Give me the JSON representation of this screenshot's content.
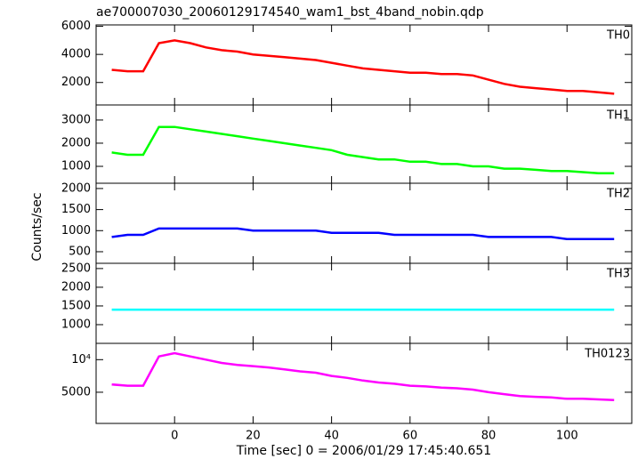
{
  "chart_data": {
    "type": "line",
    "title": "ae700007030_20060129174540_wam1_bst_4band_nobin.qdp",
    "ylabel": "Counts/sec",
    "xlabel": "Time [sec] 0 = 2006/01/29 17:45:40.651",
    "xlim": [
      -20,
      116.5
    ],
    "xticks": [
      0,
      20,
      40,
      60,
      80,
      100
    ],
    "x": [
      -16,
      -12,
      -8,
      -4,
      0,
      4,
      8,
      12,
      16,
      20,
      24,
      28,
      32,
      36,
      40,
      44,
      48,
      52,
      56,
      60,
      64,
      68,
      72,
      76,
      80,
      84,
      88,
      92,
      96,
      100,
      104,
      108,
      112
    ],
    "series": [
      {
        "name": "TH0",
        "color": "#ff0000",
        "ylim": [
          400,
          6100
        ],
        "yticks": [
          2000,
          4000,
          6000
        ],
        "values": [
          2900,
          2800,
          2800,
          4800,
          5000,
          4800,
          4500,
          4300,
          4200,
          4000,
          3900,
          3800,
          3700,
          3600,
          3400,
          3200,
          3000,
          2900,
          2800,
          2700,
          2700,
          2600,
          2600,
          2500,
          2200,
          1900,
          1700,
          1600,
          1500,
          1400,
          1400,
          1300,
          1200
        ]
      },
      {
        "name": "TH1",
        "color": "#00ff00",
        "ylim": [
          270,
          3650
        ],
        "yticks": [
          1000,
          2000,
          3000
        ],
        "values": [
          1600,
          1500,
          1500,
          2700,
          2700,
          2600,
          2500,
          2400,
          2300,
          2200,
          2100,
          2000,
          1900,
          1800,
          1700,
          1500,
          1400,
          1300,
          1300,
          1200,
          1200,
          1100,
          1100,
          1000,
          1000,
          900,
          900,
          850,
          800,
          800,
          750,
          700,
          700
        ]
      },
      {
        "name": "TH2",
        "color": "#0000ff",
        "ylim": [
          225,
          2125
        ],
        "yticks": [
          500,
          1000,
          1500,
          2000
        ],
        "values": [
          850,
          900,
          900,
          1050,
          1050,
          1050,
          1050,
          1050,
          1050,
          1000,
          1000,
          1000,
          1000,
          1000,
          950,
          950,
          950,
          950,
          900,
          900,
          900,
          900,
          900,
          900,
          850,
          850,
          850,
          850,
          850,
          800,
          800,
          800,
          800
        ]
      },
      {
        "name": "TH3",
        "color": "#00ffff",
        "ylim": [
          500,
          2640
        ],
        "yticks": [
          1000,
          1500,
          2000,
          2500
        ],
        "values": [
          1400,
          1400,
          1400,
          1400,
          1400,
          1400,
          1400,
          1400,
          1400,
          1400,
          1400,
          1400,
          1400,
          1400,
          1400,
          1400,
          1400,
          1400,
          1400,
          1400,
          1400,
          1400,
          1400,
          1400,
          1400,
          1400,
          1400,
          1400,
          1400,
          1400,
          1400,
          1400,
          1400
        ]
      },
      {
        "name": "TH0123",
        "color": "#ff00ff",
        "ylim": [
          215,
          12500
        ],
        "yticks": [
          5000,
          {
            "value": 10000,
            "label": "10⁴"
          }
        ],
        "values": [
          6200,
          6000,
          6000,
          10500,
          11000,
          10500,
          10000,
          9500,
          9200,
          9000,
          8800,
          8500,
          8200,
          8000,
          7500,
          7200,
          6800,
          6500,
          6300,
          6000,
          5900,
          5700,
          5600,
          5400,
          5000,
          4700,
          4400,
          4300,
          4200,
          4000,
          4000,
          3900,
          3800
        ]
      }
    ]
  }
}
